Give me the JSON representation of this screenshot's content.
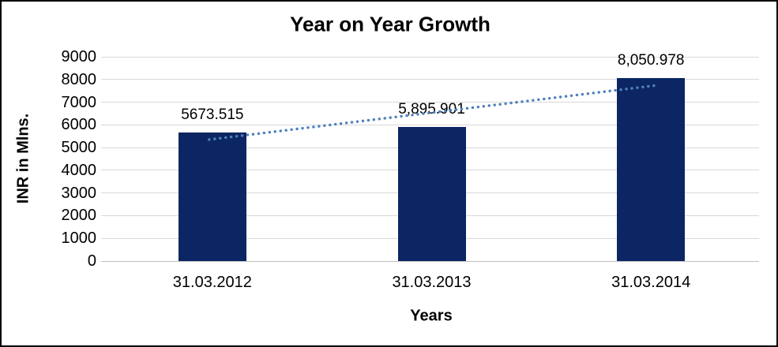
{
  "chart_data": {
    "type": "bar",
    "title": "Year on Year Growth",
    "xlabel": "Years",
    "ylabel": "INR in Mlns.",
    "categories": [
      "31.03.2012",
      "31.03.2013",
      "31.03.2014"
    ],
    "values": [
      5673.515,
      5895.901,
      8050.978
    ],
    "data_labels": [
      "5673.515",
      "5,895.901",
      "8,050.978"
    ],
    "ylim": [
      0,
      9000
    ],
    "ytick_step": 1000,
    "grid": true,
    "legend": false,
    "bar_color": "#0C2663",
    "grid_color": "#D9D9D9",
    "axis_color": "#BFBFBF",
    "text_color": "#000000",
    "trendline": {
      "type": "linear",
      "style": "dotted",
      "color": "#4F81BD"
    }
  }
}
